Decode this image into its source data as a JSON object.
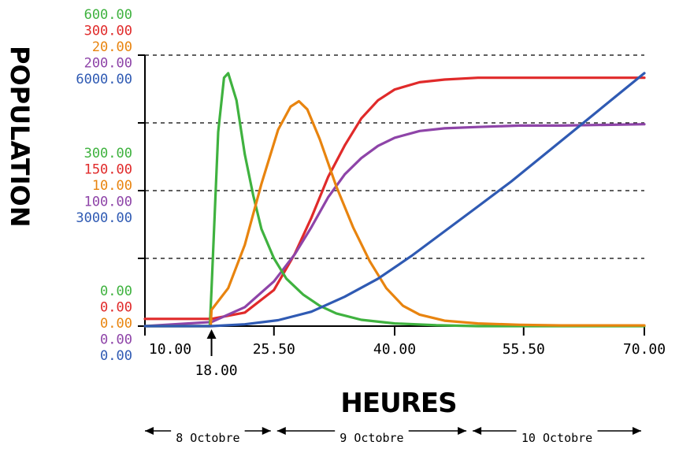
{
  "chart_data": {
    "type": "line",
    "xlabel": "HEURES",
    "ylabel": "POPULATION",
    "xlim": [
      10,
      70
    ],
    "x_ticks": [
      "10.00",
      "25.50",
      "40.00",
      "55.50",
      "70.00"
    ],
    "x_marker": {
      "x": 18,
      "label": "18.00"
    },
    "grid": "horizontal dashed",
    "y_scales": [
      {
        "color": "#3fb23f",
        "labels": [
          "600.00",
          "300.00",
          "0.00"
        ],
        "range": [
          0,
          600
        ]
      },
      {
        "color": "#e02a2a",
        "labels": [
          "300.00",
          "150.00",
          "0.00"
        ],
        "range": [
          0,
          300
        ]
      },
      {
        "color": "#e8840f",
        "labels": [
          "20.00",
          "10.00",
          "0.00"
        ],
        "range": [
          0,
          20
        ]
      },
      {
        "color": "#8e44a8",
        "labels": [
          "200.00",
          "100.00",
          "0.00"
        ],
        "range": [
          0,
          200
        ]
      },
      {
        "color": "#2f5ab3",
        "labels": [
          "6000.00",
          "3000.00",
          "0.00"
        ],
        "range": [
          0,
          6000
        ]
      }
    ],
    "series": [
      {
        "color": "#e02a2a",
        "range": [
          0,
          300
        ],
        "x": [
          10,
          17.5,
          18,
          22,
          25.5,
          28,
          30,
          32,
          34,
          36,
          38,
          40,
          43,
          46,
          50,
          55,
          60,
          70
        ],
        "y": [
          8,
          8,
          8,
          15,
          40,
          80,
          120,
          165,
          200,
          230,
          250,
          262,
          270,
          273,
          275,
          275,
          275,
          275
        ]
      },
      {
        "color": "#8e44a8",
        "range": [
          0,
          200
        ],
        "x": [
          10,
          18,
          22,
          25.5,
          28,
          30,
          32,
          34,
          36,
          38,
          40,
          43,
          46,
          50,
          55,
          60,
          70
        ],
        "y": [
          0,
          3,
          14,
          33,
          53,
          73,
          95,
          112,
          124,
          133,
          139,
          144,
          146,
          147,
          148,
          148,
          149
        ]
      },
      {
        "color": "#3fb23f",
        "range": [
          0,
          600
        ],
        "x": [
          10,
          17.8,
          18,
          18.8,
          19.5,
          20,
          21,
          22,
          23,
          24,
          25.5,
          27,
          29,
          31,
          33,
          36,
          40,
          45,
          50,
          70
        ],
        "y": [
          0,
          0,
          80,
          430,
          550,
          560,
          500,
          380,
          290,
          215,
          150,
          105,
          70,
          45,
          28,
          14,
          6,
          2,
          0,
          0
        ]
      },
      {
        "color": "#e8840f",
        "range": [
          0,
          20
        ],
        "x": [
          10,
          17.9,
          18,
          20,
          22,
          24,
          26,
          27.5,
          28.5,
          29.5,
          31,
          33,
          35,
          37,
          39,
          41,
          43,
          46,
          50,
          55,
          60,
          70
        ],
        "y": [
          0,
          0,
          1.2,
          2.8,
          6.0,
          10.5,
          14.5,
          16.2,
          16.6,
          16.0,
          13.8,
          10.3,
          7.3,
          4.8,
          2.8,
          1.5,
          0.85,
          0.4,
          0.2,
          0.1,
          0.05,
          0.05
        ]
      },
      {
        "color": "#2f5ab3",
        "range": [
          0,
          6000
        ],
        "x": [
          10,
          18,
          22,
          26,
          30,
          34,
          38,
          42,
          46,
          50,
          54,
          58,
          62,
          66,
          70
        ],
        "y": [
          0,
          0,
          40,
          130,
          320,
          650,
          1050,
          1550,
          2100,
          2650,
          3200,
          3800,
          4400,
          5000,
          5600
        ]
      }
    ]
  },
  "periods": [
    {
      "label": "8 Octobre",
      "from": 10,
      "to": 25.5
    },
    {
      "label": "9 Octobre",
      "from": 25.5,
      "to": 49
    },
    {
      "label": "10 Octobre",
      "from": 49,
      "to": 70
    }
  ]
}
